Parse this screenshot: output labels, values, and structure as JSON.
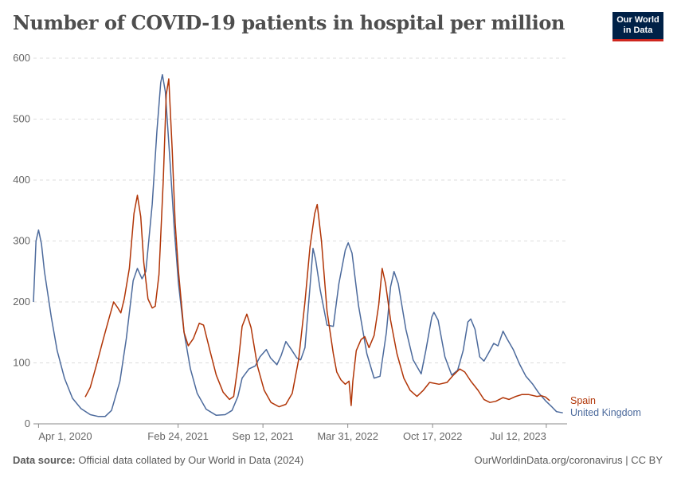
{
  "header": {
    "title": "Number of COVID-19 patients in hospital per million",
    "logo_line1": "Our World",
    "logo_line2": "in Data"
  },
  "footer": {
    "source_label": "Data source:",
    "source_text": "Official data collated by Our World in Data (2024)",
    "link": "OurWorldinData.org/coronavirus | CC BY"
  },
  "chart_data": {
    "type": "line",
    "title": "Number of COVID-19 patients in hospital per million",
    "xlim": [
      "2020-03-20",
      "2023-08-30"
    ],
    "ylim": [
      0,
      600
    ],
    "yticks": [
      0,
      100,
      200,
      300,
      400,
      500,
      600
    ],
    "xticks": [
      {
        "date": "2020-04-01",
        "label": "Apr 1, 2020"
      },
      {
        "date": "2021-02-24",
        "label": "Feb 24, 2021"
      },
      {
        "date": "2021-09-12",
        "label": "Sep 12, 2021"
      },
      {
        "date": "2022-03-31",
        "label": "Mar 31, 2022"
      },
      {
        "date": "2022-10-17",
        "label": "Oct 17, 2022"
      },
      {
        "date": "2023-07-12",
        "label": "Jul 12, 2023"
      }
    ],
    "grid": true,
    "legend": "line-end labels",
    "series": [
      {
        "name": "United Kingdom",
        "color": "#4c6a9c",
        "points": [
          [
            "2020-03-20",
            200
          ],
          [
            "2020-03-26",
            300
          ],
          [
            "2020-04-01",
            318
          ],
          [
            "2020-04-08",
            295
          ],
          [
            "2020-04-15",
            250
          ],
          [
            "2020-05-01",
            175
          ],
          [
            "2020-05-15",
            120
          ],
          [
            "2020-06-01",
            75
          ],
          [
            "2020-06-20",
            42
          ],
          [
            "2020-07-10",
            25
          ],
          [
            "2020-08-01",
            15
          ],
          [
            "2020-08-20",
            12
          ],
          [
            "2020-09-05",
            12
          ],
          [
            "2020-09-20",
            22
          ],
          [
            "2020-10-10",
            70
          ],
          [
            "2020-10-25",
            140
          ],
          [
            "2020-11-10",
            235
          ],
          [
            "2020-11-20",
            255
          ],
          [
            "2020-12-01",
            238
          ],
          [
            "2020-12-10",
            250
          ],
          [
            "2020-12-25",
            360
          ],
          [
            "2021-01-05",
            480
          ],
          [
            "2021-01-14",
            560
          ],
          [
            "2021-01-18",
            573
          ],
          [
            "2021-01-25",
            545
          ],
          [
            "2021-02-05",
            430
          ],
          [
            "2021-02-15",
            320
          ],
          [
            "2021-02-25",
            230
          ],
          [
            "2021-03-10",
            150
          ],
          [
            "2021-03-25",
            90
          ],
          [
            "2021-04-10",
            50
          ],
          [
            "2021-05-01",
            24
          ],
          [
            "2021-05-25",
            14
          ],
          [
            "2021-06-15",
            15
          ],
          [
            "2021-07-01",
            22
          ],
          [
            "2021-07-15",
            45
          ],
          [
            "2021-07-25",
            75
          ],
          [
            "2021-08-10",
            90
          ],
          [
            "2021-08-25",
            95
          ],
          [
            "2021-09-05",
            110
          ],
          [
            "2021-09-20",
            122
          ],
          [
            "2021-09-30",
            108
          ],
          [
            "2021-10-15",
            97
          ],
          [
            "2021-10-25",
            112
          ],
          [
            "2021-11-05",
            135
          ],
          [
            "2021-11-18",
            122
          ],
          [
            "2021-12-01",
            108
          ],
          [
            "2021-12-10",
            105
          ],
          [
            "2021-12-20",
            125
          ],
          [
            "2022-01-01",
            225
          ],
          [
            "2022-01-08",
            288
          ],
          [
            "2022-01-14",
            270
          ],
          [
            "2022-01-25",
            220
          ],
          [
            "2022-02-10",
            162
          ],
          [
            "2022-02-25",
            160
          ],
          [
            "2022-03-10",
            230
          ],
          [
            "2022-03-25",
            285
          ],
          [
            "2022-04-01",
            297
          ],
          [
            "2022-04-10",
            280
          ],
          [
            "2022-04-25",
            195
          ],
          [
            "2022-05-15",
            115
          ],
          [
            "2022-06-01",
            75
          ],
          [
            "2022-06-15",
            78
          ],
          [
            "2022-06-30",
            150
          ],
          [
            "2022-07-10",
            225
          ],
          [
            "2022-07-18",
            250
          ],
          [
            "2022-07-28",
            230
          ],
          [
            "2022-08-15",
            155
          ],
          [
            "2022-09-01",
            105
          ],
          [
            "2022-09-20",
            82
          ],
          [
            "2022-10-01",
            120
          ],
          [
            "2022-10-15",
            175
          ],
          [
            "2022-10-20",
            183
          ],
          [
            "2022-10-30",
            170
          ],
          [
            "2022-11-15",
            110
          ],
          [
            "2022-12-01",
            80
          ],
          [
            "2022-12-15",
            88
          ],
          [
            "2022-12-28",
            120
          ],
          [
            "2023-01-08",
            167
          ],
          [
            "2023-01-15",
            172
          ],
          [
            "2023-01-25",
            155
          ],
          [
            "2023-02-05",
            110
          ],
          [
            "2023-02-15",
            103
          ],
          [
            "2023-02-25",
            115
          ],
          [
            "2023-03-10",
            132
          ],
          [
            "2023-03-20",
            128
          ],
          [
            "2023-04-01",
            152
          ],
          [
            "2023-04-10",
            140
          ],
          [
            "2023-04-25",
            122
          ],
          [
            "2023-05-10",
            98
          ],
          [
            "2023-05-25",
            78
          ],
          [
            "2023-06-10",
            65
          ],
          [
            "2023-06-25",
            50
          ],
          [
            "2023-07-10",
            38
          ],
          [
            "2023-07-25",
            28
          ],
          [
            "2023-08-05",
            20
          ],
          [
            "2023-08-20",
            18
          ]
        ]
      },
      {
        "name": "Spain",
        "color": "#b13507",
        "points": [
          [
            "2020-07-20",
            44
          ],
          [
            "2020-08-01",
            60
          ],
          [
            "2020-08-15",
            95
          ],
          [
            "2020-09-01",
            140
          ],
          [
            "2020-09-15",
            175
          ],
          [
            "2020-09-25",
            200
          ],
          [
            "2020-10-05",
            190
          ],
          [
            "2020-10-12",
            182
          ],
          [
            "2020-10-20",
            205
          ],
          [
            "2020-11-01",
            255
          ],
          [
            "2020-11-12",
            345
          ],
          [
            "2020-11-20",
            375
          ],
          [
            "2020-11-28",
            340
          ],
          [
            "2020-12-05",
            265
          ],
          [
            "2020-12-15",
            205
          ],
          [
            "2020-12-25",
            190
          ],
          [
            "2021-01-01",
            193
          ],
          [
            "2021-01-10",
            245
          ],
          [
            "2021-01-20",
            400
          ],
          [
            "2021-01-27",
            540
          ],
          [
            "2021-02-02",
            566
          ],
          [
            "2021-02-10",
            450
          ],
          [
            "2021-02-17",
            330
          ],
          [
            "2021-02-25",
            250
          ],
          [
            "2021-03-10",
            150
          ],
          [
            "2021-03-20",
            128
          ],
          [
            "2021-04-01",
            140
          ],
          [
            "2021-04-15",
            165
          ],
          [
            "2021-04-25",
            162
          ],
          [
            "2021-05-10",
            120
          ],
          [
            "2021-05-25",
            80
          ],
          [
            "2021-06-10",
            52
          ],
          [
            "2021-06-25",
            40
          ],
          [
            "2021-07-05",
            45
          ],
          [
            "2021-07-15",
            95
          ],
          [
            "2021-07-25",
            160
          ],
          [
            "2021-08-05",
            180
          ],
          [
            "2021-08-15",
            158
          ],
          [
            "2021-08-30",
            95
          ],
          [
            "2021-09-15",
            55
          ],
          [
            "2021-10-01",
            35
          ],
          [
            "2021-10-20",
            28
          ],
          [
            "2021-11-05",
            32
          ],
          [
            "2021-11-20",
            50
          ],
          [
            "2021-12-05",
            105
          ],
          [
            "2021-12-20",
            200
          ],
          [
            "2022-01-01",
            290
          ],
          [
            "2022-01-12",
            345
          ],
          [
            "2022-01-18",
            360
          ],
          [
            "2022-01-28",
            300
          ],
          [
            "2022-02-10",
            185
          ],
          [
            "2022-02-25",
            115
          ],
          [
            "2022-03-05",
            85
          ],
          [
            "2022-03-15",
            72
          ],
          [
            "2022-03-25",
            65
          ],
          [
            "2022-04-03",
            70
          ],
          [
            "2022-04-08",
            30
          ],
          [
            "2022-04-12",
            70
          ],
          [
            "2022-04-20",
            120
          ],
          [
            "2022-05-01",
            138
          ],
          [
            "2022-05-10",
            143
          ],
          [
            "2022-05-20",
            125
          ],
          [
            "2022-06-01",
            145
          ],
          [
            "2022-06-12",
            195
          ],
          [
            "2022-06-20",
            255
          ],
          [
            "2022-06-28",
            230
          ],
          [
            "2022-07-10",
            170
          ],
          [
            "2022-07-25",
            115
          ],
          [
            "2022-08-10",
            75
          ],
          [
            "2022-08-25",
            55
          ],
          [
            "2022-09-10",
            45
          ],
          [
            "2022-09-25",
            55
          ],
          [
            "2022-10-10",
            68
          ],
          [
            "2022-11-01",
            65
          ],
          [
            "2022-11-20",
            68
          ],
          [
            "2022-12-05",
            80
          ],
          [
            "2022-12-20",
            90
          ],
          [
            "2023-01-01",
            85
          ],
          [
            "2023-01-15",
            70
          ],
          [
            "2023-02-01",
            55
          ],
          [
            "2023-02-15",
            40
          ],
          [
            "2023-03-01",
            35
          ],
          [
            "2023-03-15",
            37
          ],
          [
            "2023-04-01",
            43
          ],
          [
            "2023-04-15",
            40
          ],
          [
            "2023-05-01",
            45
          ],
          [
            "2023-05-15",
            48
          ],
          [
            "2023-06-01",
            48
          ],
          [
            "2023-06-20",
            45
          ],
          [
            "2023-07-01",
            46
          ],
          [
            "2023-07-10",
            44
          ],
          [
            "2023-07-20",
            38
          ]
        ]
      }
    ]
  }
}
